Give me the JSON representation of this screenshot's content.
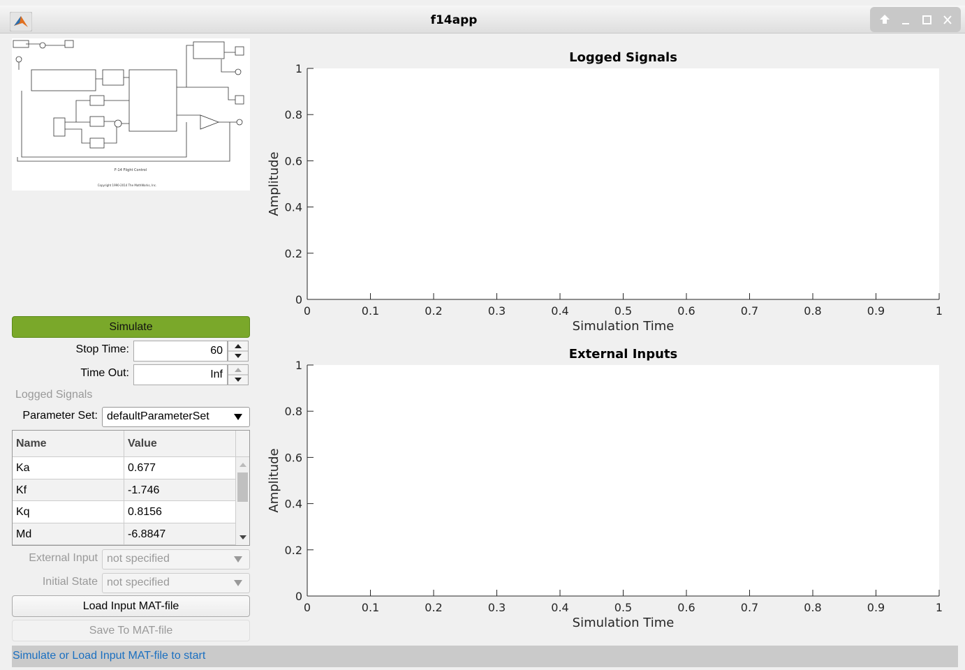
{
  "window": {
    "title": "f14app"
  },
  "diagram": {
    "caption": "F-14 Flight Control",
    "copyright": "Copyright 1990-2014 The MathWorks, Inc."
  },
  "controls": {
    "simulate": "Simulate",
    "stop_time": {
      "label": "Stop Time:",
      "value": "60"
    },
    "time_out": {
      "label": "Time Out:",
      "value": "Inf"
    },
    "logged_signals": "Logged Signals",
    "parameter_set": {
      "label": "Parameter Set:",
      "value": "defaultParameterSet"
    },
    "external_input": {
      "label": "External Input",
      "value": "not specified"
    },
    "initial_state": {
      "label": "Initial State",
      "value": "not specified"
    },
    "load": "Load Input MAT-file",
    "save": "Save To MAT-file"
  },
  "table": {
    "columns": [
      "Name",
      "Value"
    ],
    "rows": [
      [
        "Ka",
        "0.677"
      ],
      [
        "Kf",
        "-1.746"
      ],
      [
        "Kq",
        "0.8156"
      ],
      [
        "Md",
        "-6.8847"
      ]
    ]
  },
  "status": "Simulate or Load Input MAT-file to start",
  "plots": [
    {
      "title": "Logged Signals",
      "xlabel": "Simulation Time",
      "ylabel": "Amplitude",
      "xlim": [
        0,
        1
      ],
      "ylim": [
        0,
        1
      ],
      "xticks": [
        0,
        0.1,
        0.2,
        0.3,
        0.4,
        0.5,
        0.6,
        0.7,
        0.8,
        0.9,
        1
      ],
      "yticks": [
        0,
        0.2,
        0.4,
        0.6,
        0.8,
        1
      ]
    },
    {
      "title": "External Inputs",
      "xlabel": "Simulation Time",
      "ylabel": "Amplitude",
      "xlim": [
        0,
        1
      ],
      "ylim": [
        0,
        1
      ],
      "xticks": [
        0,
        0.1,
        0.2,
        0.3,
        0.4,
        0.5,
        0.6,
        0.7,
        0.8,
        0.9,
        1
      ],
      "yticks": [
        0,
        0.2,
        0.4,
        0.6,
        0.8,
        1
      ]
    }
  ]
}
